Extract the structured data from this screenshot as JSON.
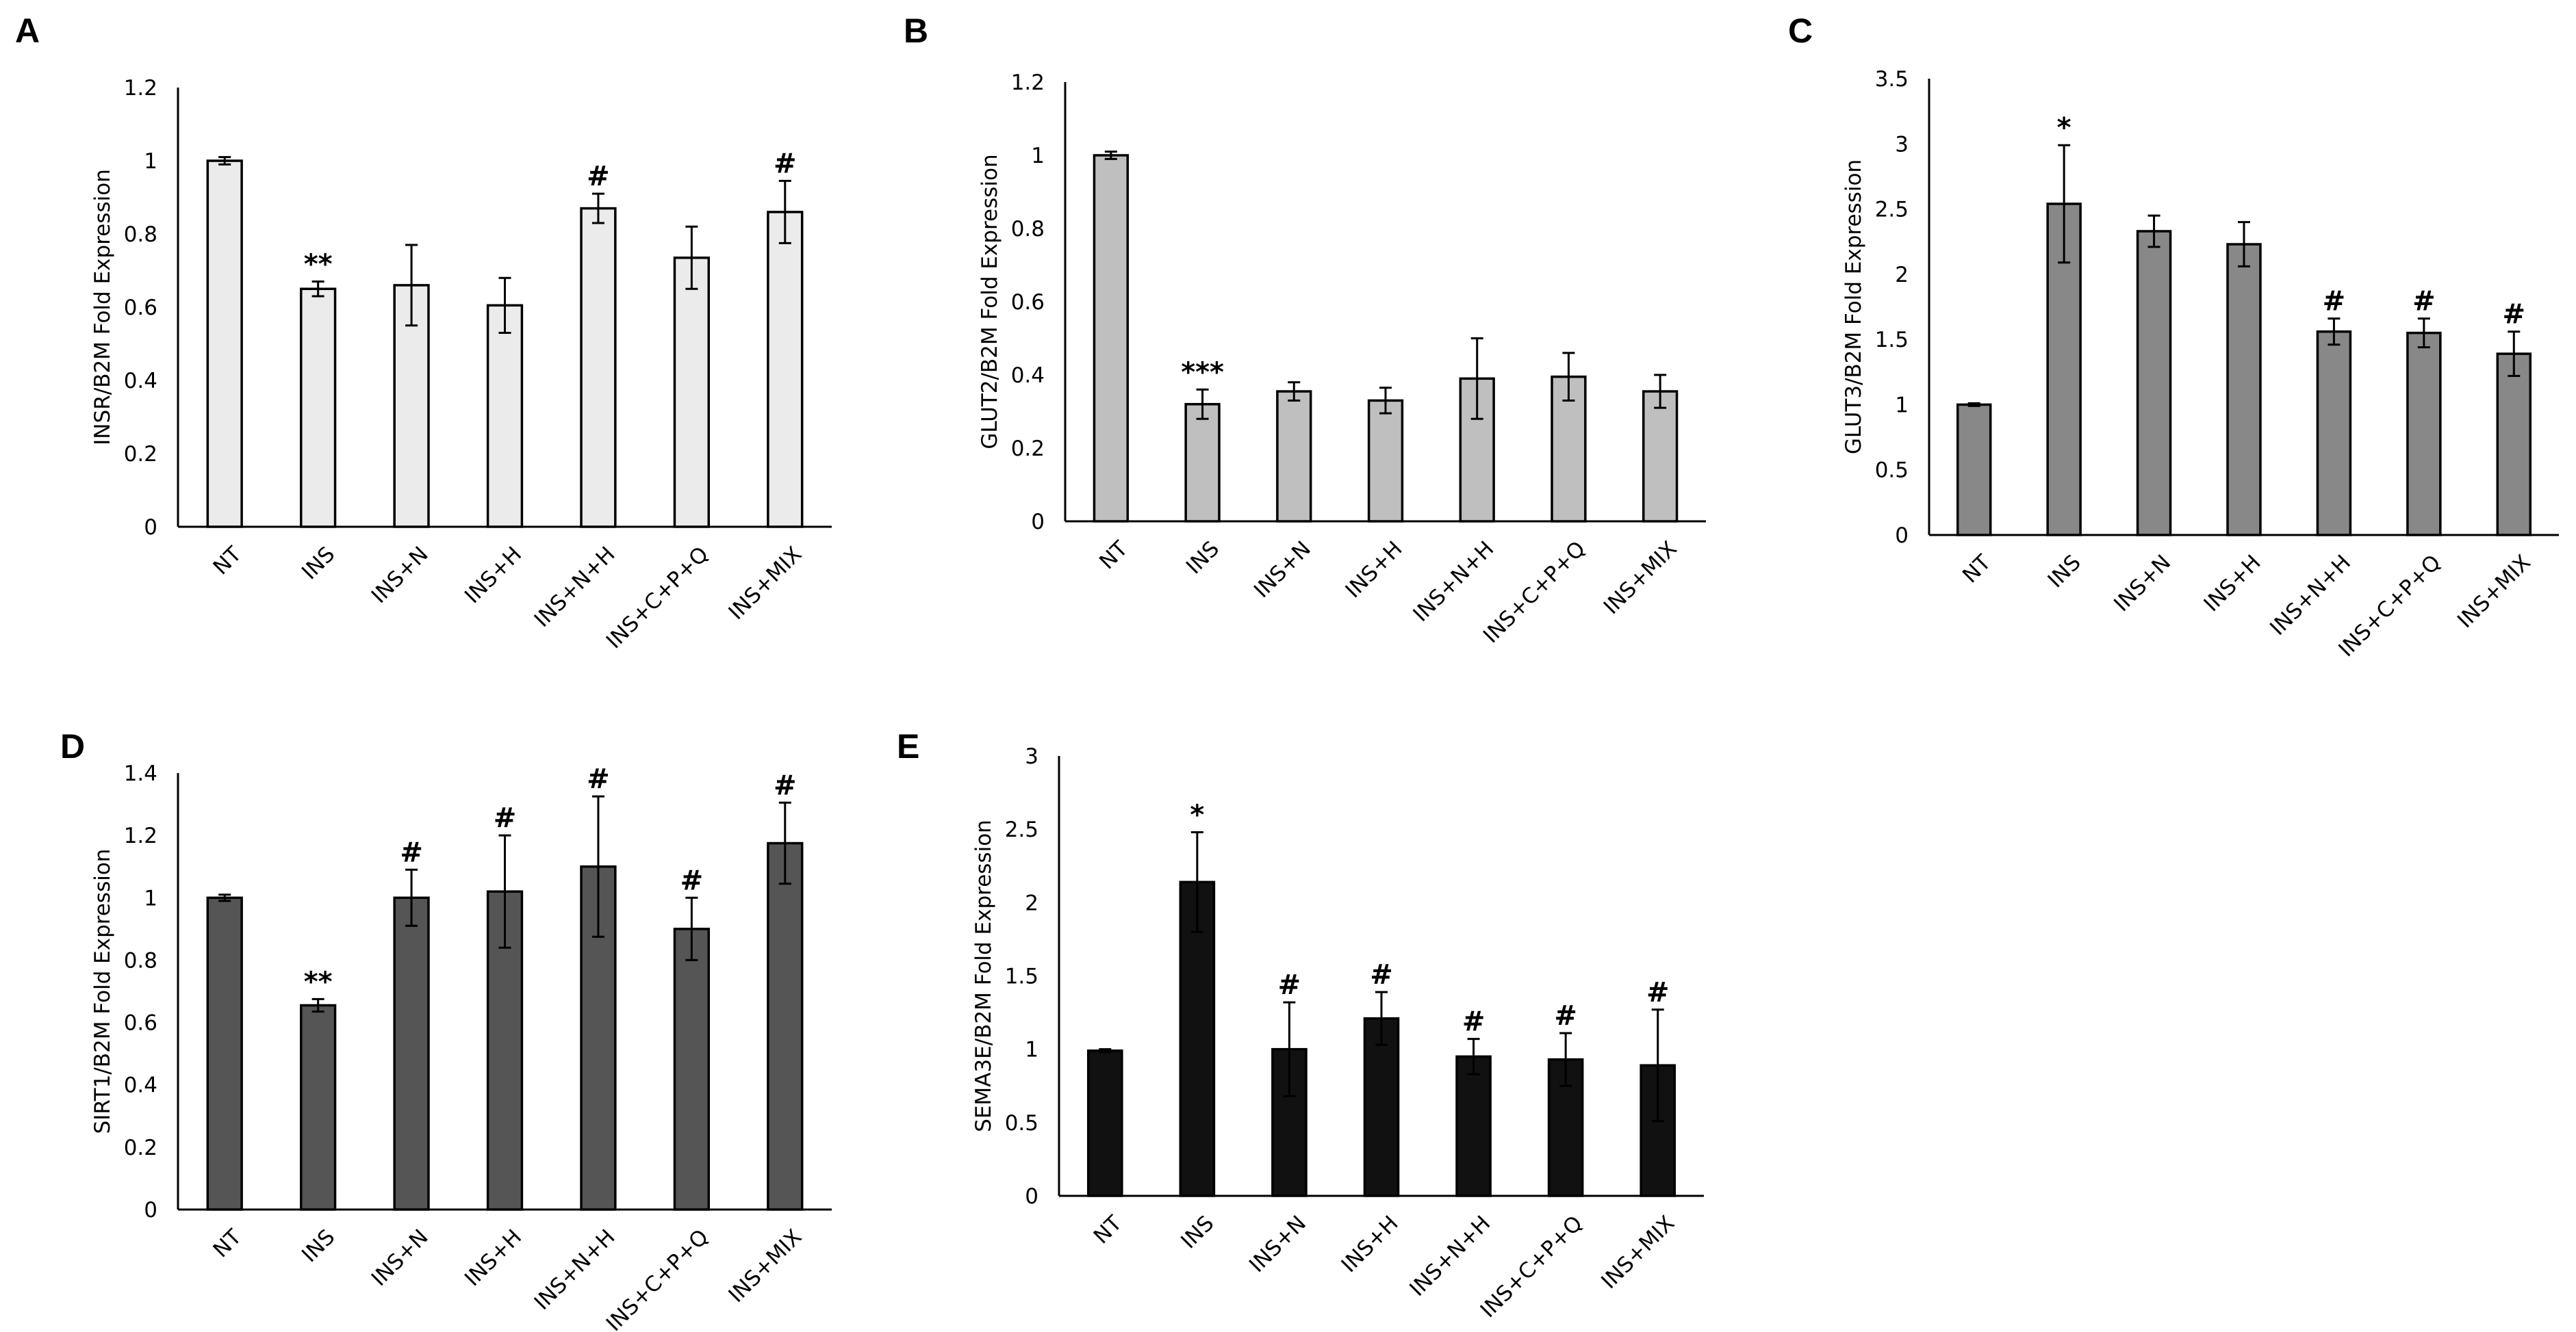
{
  "chart_data": [
    {
      "panel": "A",
      "type": "bar",
      "ylabel": "INSR/B2M Fold Expression",
      "ylim": [
        0,
        1.2
      ],
      "yticks": [
        "0",
        "0.2",
        "0.4",
        "0.6",
        "0.8",
        "1",
        "1.2"
      ],
      "categories": [
        "NT",
        "INS",
        "INS+N",
        "INS+H",
        "INS+N+H",
        "INS+C+P+Q",
        "INS+MIX"
      ],
      "values": [
        1.0,
        0.65,
        0.66,
        0.605,
        0.87,
        0.735,
        0.86
      ],
      "errors": [
        0.01,
        0.02,
        0.11,
        0.075,
        0.04,
        0.085,
        0.085
      ],
      "significance": [
        "",
        "**",
        "",
        "",
        "#",
        "",
        "#"
      ],
      "bar_color": "#ebebeb"
    },
    {
      "panel": "B",
      "type": "bar",
      "ylabel": "GLUT2/B2M Fold Expression",
      "ylim": [
        0,
        1.2
      ],
      "yticks": [
        "0",
        "0.2",
        "0.4",
        "0.6",
        "0.8",
        "1",
        "1.2"
      ],
      "categories": [
        "NT",
        "INS",
        "INS+N",
        "INS+H",
        "INS+N+H",
        "INS+C+P+Q",
        "INS+MIX"
      ],
      "values": [
        1.0,
        0.32,
        0.355,
        0.33,
        0.39,
        0.395,
        0.355
      ],
      "errors": [
        0.01,
        0.04,
        0.025,
        0.035,
        0.11,
        0.065,
        0.045
      ],
      "significance": [
        "",
        "***",
        "",
        "",
        "",
        "",
        ""
      ],
      "bar_color": "#bfbfbf"
    },
    {
      "panel": "C",
      "type": "bar",
      "ylabel": "GLUT3/B2M Fold Expression",
      "ylim": [
        0,
        3.5
      ],
      "yticks": [
        "0",
        "0.5",
        "1",
        "1.5",
        "2",
        "2.5",
        "3",
        "3.5"
      ],
      "categories": [
        "NT",
        "INS",
        "INS+N",
        "INS+H",
        "INS+N+H",
        "INS+C+P+Q",
        "INS+MIX"
      ],
      "values": [
        1.0,
        2.54,
        2.33,
        2.23,
        1.56,
        1.55,
        1.39
      ],
      "errors": [
        0.01,
        0.45,
        0.12,
        0.17,
        0.1,
        0.11,
        0.17
      ],
      "significance": [
        "",
        "*",
        "",
        "",
        "#",
        "#",
        "#"
      ],
      "bar_color": "#888888"
    },
    {
      "panel": "D",
      "type": "bar",
      "ylabel": "SIRT1/B2M Fold Expression",
      "ylim": [
        0,
        1.4
      ],
      "yticks": [
        "0",
        "0.2",
        "0.4",
        "0.6",
        "0.8",
        "1",
        "1.2",
        "1.4"
      ],
      "categories": [
        "NT",
        "INS",
        "INS+N",
        "INS+H",
        "INS+N+H",
        "INS+C+P+Q",
        "INS+MIX"
      ],
      "values": [
        1.0,
        0.655,
        1.0,
        1.02,
        1.1,
        0.9,
        1.175
      ],
      "errors": [
        0.01,
        0.02,
        0.09,
        0.18,
        0.225,
        0.1,
        0.13
      ],
      "significance": [
        "",
        "**",
        "#",
        "#",
        "#",
        "#",
        "#"
      ],
      "bar_color": "#555555"
    },
    {
      "panel": "E",
      "type": "bar",
      "ylabel": "SEMA3E/B2M Fold Expression",
      "ylim": [
        0,
        3
      ],
      "yticks": [
        "0",
        "0.5",
        "1",
        "1.5",
        "2",
        "2.5",
        "3"
      ],
      "categories": [
        "NT",
        "INS",
        "INS+N",
        "INS+H",
        "INS+N+H",
        "INS+C+P+Q",
        "INS+MIX"
      ],
      "values": [
        0.99,
        2.14,
        1.0,
        1.21,
        0.95,
        0.93,
        0.89
      ],
      "errors": [
        0.01,
        0.34,
        0.32,
        0.18,
        0.12,
        0.18,
        0.38
      ],
      "significance": [
        "",
        "*",
        "#",
        "#",
        "#",
        "#",
        "#"
      ],
      "bar_color": "#111111"
    }
  ]
}
